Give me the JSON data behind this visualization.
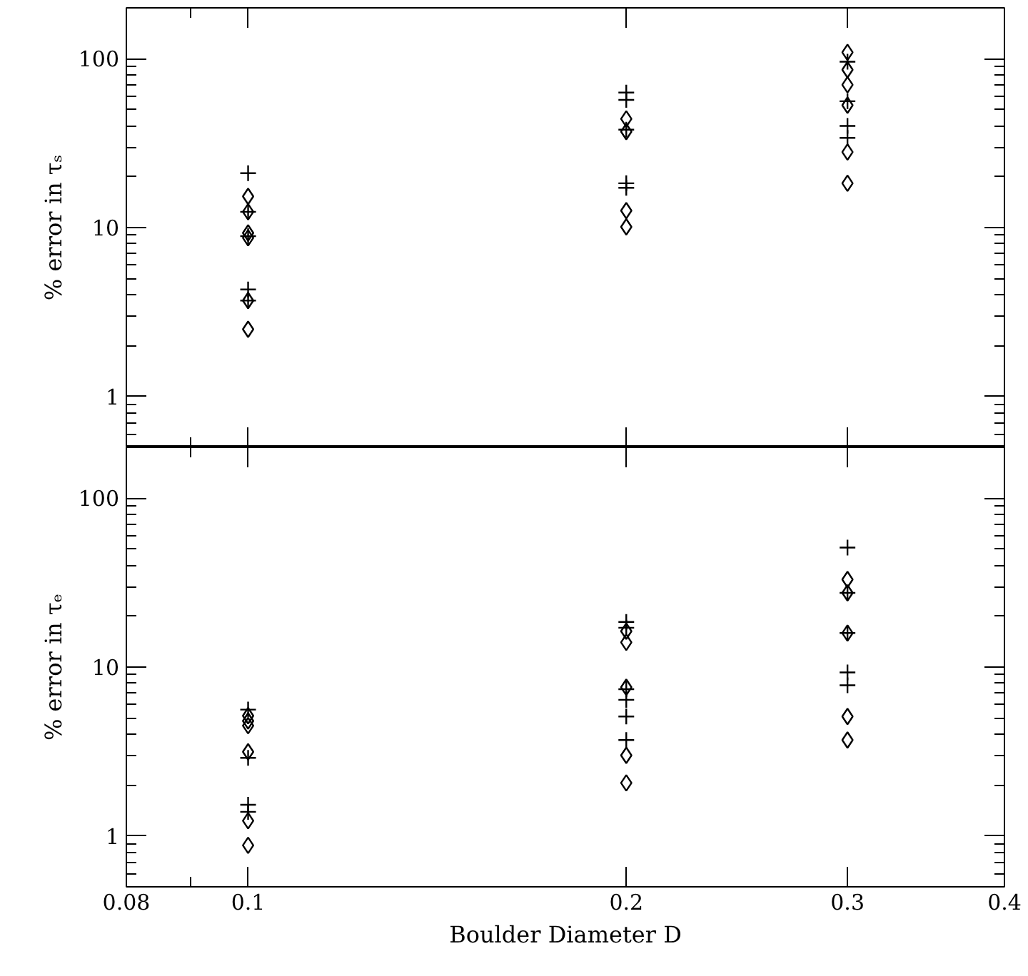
{
  "chart_data": [
    {
      "type": "scatter",
      "ylabel": "% error in τₛ",
      "log": "xy",
      "grid": false,
      "tick_labels": "y",
      "xlim": [
        0.08,
        0.4
      ],
      "ylim": [
        0.5,
        200
      ],
      "xticks": [
        0.08,
        {
          "value": 0.09,
          "label": null
        },
        0.1,
        0.2,
        0.3,
        0.4
      ],
      "yticks": [
        {
          "value": 0.5,
          "label": null
        },
        {
          "value": 0.6,
          "label": null
        },
        {
          "value": 0.7,
          "label": null
        },
        {
          "value": 0.8,
          "label": null
        },
        {
          "value": 0.9,
          "label": null
        },
        1,
        {
          "value": 2,
          "label": null
        },
        {
          "value": 3,
          "label": null
        },
        {
          "value": 4,
          "label": null
        },
        {
          "value": 5,
          "label": null
        },
        {
          "value": 6,
          "label": null
        },
        {
          "value": 7,
          "label": null
        },
        {
          "value": 8,
          "label": null
        },
        {
          "value": 9,
          "label": null
        },
        10,
        {
          "value": 20,
          "label": null
        },
        {
          "value": 30,
          "label": null
        },
        {
          "value": 40,
          "label": null
        },
        {
          "value": 50,
          "label": null
        },
        {
          "value": 60,
          "label": null
        },
        {
          "value": 70,
          "label": null
        },
        {
          "value": 80,
          "label": null
        },
        {
          "value": 90,
          "label": null
        },
        100,
        {
          "value": 200,
          "label": null
        }
      ],
      "series": [
        {
          "marker": "cross",
          "color": "#000000",
          "x": [
            0.1,
            0.1,
            0.1,
            0.1,
            0.1,
            0.2,
            0.2,
            0.2,
            0.2,
            0.2,
            0.3,
            0.3,
            0.3,
            0.3
          ],
          "values": [
            21,
            12.4,
            8.9,
            4.3,
            3.7,
            63,
            57,
            38,
            18.3,
            17.2,
            96,
            56,
            40,
            34
          ]
        },
        {
          "marker": "diamond",
          "color": "#000000",
          "x": [
            0.1,
            0.1,
            0.1,
            0.1,
            0.1,
            0.1,
            0.2,
            0.2,
            0.2,
            0.2,
            0.3,
            0.3,
            0.3,
            0.3,
            0.3,
            0.3
          ],
          "values": [
            15.3,
            12.4,
            9.3,
            8.7,
            3.7,
            2.5,
            44,
            37,
            12.6,
            10.1,
            109,
            86,
            70,
            53,
            28,
            18.3
          ]
        }
      ]
    },
    {
      "type": "scatter",
      "xlabel": "Boulder Diameter D",
      "ylabel": "% error in τₑ",
      "log": "xy",
      "grid": false,
      "xlim": [
        0.08,
        0.4
      ],
      "ylim": [
        0.5,
        200
      ],
      "xticks": [
        0.08,
        {
          "value": 0.09,
          "label": null
        },
        0.1,
        0.2,
        0.3,
        0.4
      ],
      "yticks": [
        {
          "value": 0.5,
          "label": null
        },
        {
          "value": 0.6,
          "label": null
        },
        {
          "value": 0.7,
          "label": null
        },
        {
          "value": 0.8,
          "label": null
        },
        {
          "value": 0.9,
          "label": null
        },
        1,
        {
          "value": 2,
          "label": null
        },
        {
          "value": 3,
          "label": null
        },
        {
          "value": 4,
          "label": null
        },
        {
          "value": 5,
          "label": null
        },
        {
          "value": 6,
          "label": null
        },
        {
          "value": 7,
          "label": null
        },
        {
          "value": 8,
          "label": null
        },
        {
          "value": 9,
          "label": null
        },
        10,
        {
          "value": 20,
          "label": null
        },
        {
          "value": 30,
          "label": null
        },
        {
          "value": 40,
          "label": null
        },
        {
          "value": 50,
          "label": null
        },
        {
          "value": 60,
          "label": null
        },
        {
          "value": 70,
          "label": null
        },
        {
          "value": 80,
          "label": null
        },
        {
          "value": 90,
          "label": null
        },
        100,
        {
          "value": 200,
          "label": null
        }
      ],
      "series": [
        {
          "marker": "cross",
          "color": "#000000",
          "x": [
            0.1,
            0.1,
            0.1,
            0.1,
            0.2,
            0.2,
            0.2,
            0.2,
            0.2,
            0.2,
            0.3,
            0.3,
            0.3,
            0.3,
            0.3
          ],
          "values": [
            5.6,
            2.9,
            1.53,
            1.39,
            18.5,
            17.1,
            7.4,
            6.4,
            5.1,
            3.7,
            51,
            27.5,
            15.9,
            9.3,
            7.8
          ]
        },
        {
          "marker": "diamond",
          "color": "#000000",
          "x": [
            0.1,
            0.1,
            0.1,
            0.1,
            0.1,
            0.1,
            0.2,
            0.2,
            0.2,
            0.2,
            0.2,
            0.3,
            0.3,
            0.3,
            0.3,
            0.3
          ],
          "values": [
            5.15,
            4.8,
            4.5,
            3.15,
            1.23,
            0.88,
            16.3,
            14,
            7.6,
            3,
            2.06,
            33,
            27.5,
            15.9,
            5.1,
            3.7
          ]
        }
      ]
    }
  ]
}
